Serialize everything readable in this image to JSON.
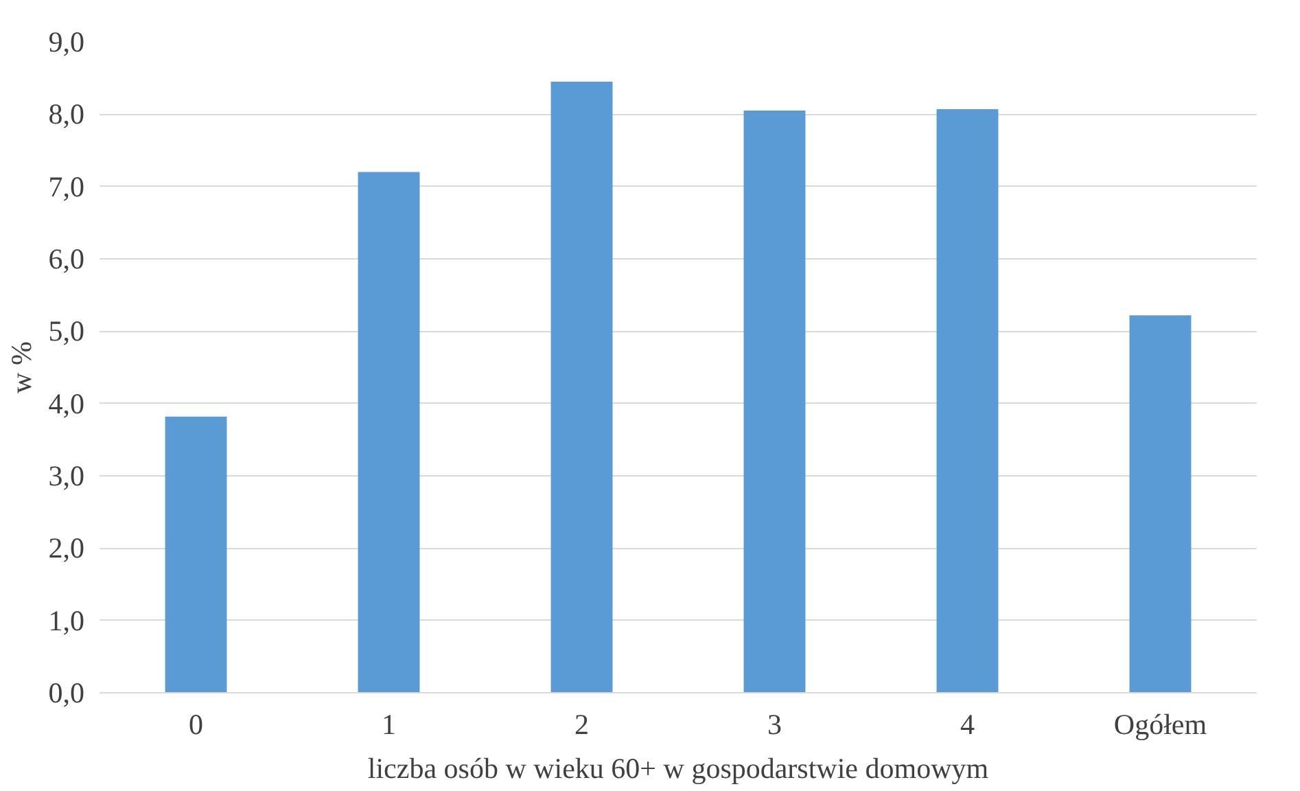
{
  "chart_data": {
    "type": "bar",
    "xlabel": "liczba osób w wieku 60+ w gospodarstwie domowym",
    "ylabel": "w %",
    "categories": [
      "0",
      "1",
      "2",
      "3",
      "4",
      "Ogółem"
    ],
    "values": [
      3.82,
      7.2,
      8.45,
      8.05,
      8.07,
      5.22
    ],
    "color": "#5b9bd5",
    "ylim": [
      0,
      9
    ],
    "yticks": [
      {
        "value": 0,
        "label": "0,0"
      },
      {
        "value": 1,
        "label": "1,0"
      },
      {
        "value": 2,
        "label": "2,0"
      },
      {
        "value": 3,
        "label": "3,0"
      },
      {
        "value": 4,
        "label": "4,0"
      },
      {
        "value": 5,
        "label": "5,0"
      },
      {
        "value": 6,
        "label": "6,0"
      },
      {
        "value": 7,
        "label": "7,0"
      },
      {
        "value": 8,
        "label": "8,0"
      },
      {
        "value": 9,
        "label": "9,0"
      }
    ],
    "grid": "y"
  }
}
